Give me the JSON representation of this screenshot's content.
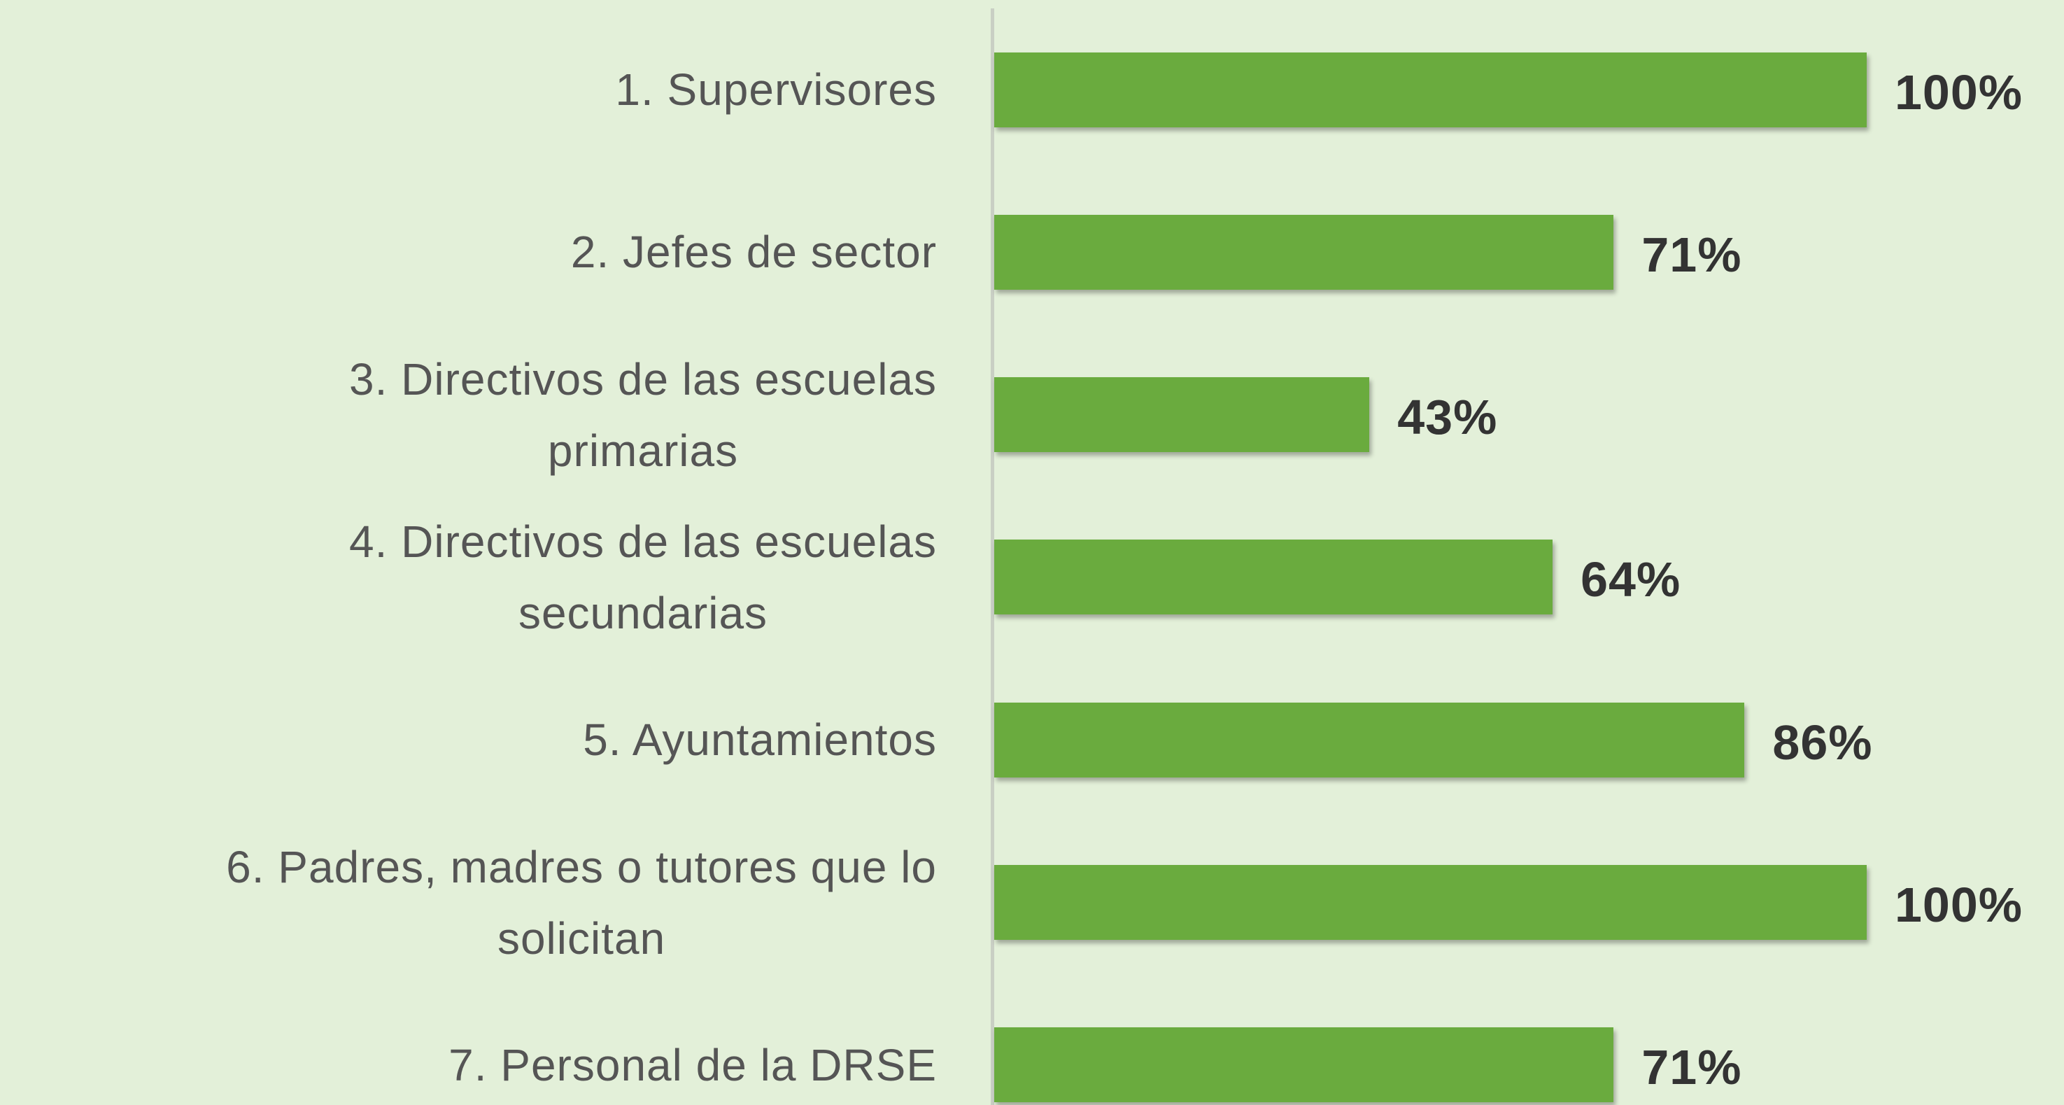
{
  "chart_data": {
    "type": "bar",
    "orientation": "horizontal",
    "categories": [
      "1. Supervisores",
      "2. Jefes de sector",
      "3. Directivos de las escuelas\nprimarias",
      "4. Directivos de las escuelas\nsecundarias",
      "5. Ayuntamientos",
      "6. Padres, madres o tutores que lo\nsolicitan",
      "7. Personal de la DRSE"
    ],
    "values": [
      100,
      71,
      43,
      64,
      86,
      100,
      71
    ],
    "value_labels": [
      "100%",
      "71%",
      "43%",
      "64%",
      "86%",
      "100%",
      "71%"
    ],
    "xlim": [
      0,
      100
    ],
    "color": "#6aab3e",
    "background": "#e3f0d9"
  }
}
